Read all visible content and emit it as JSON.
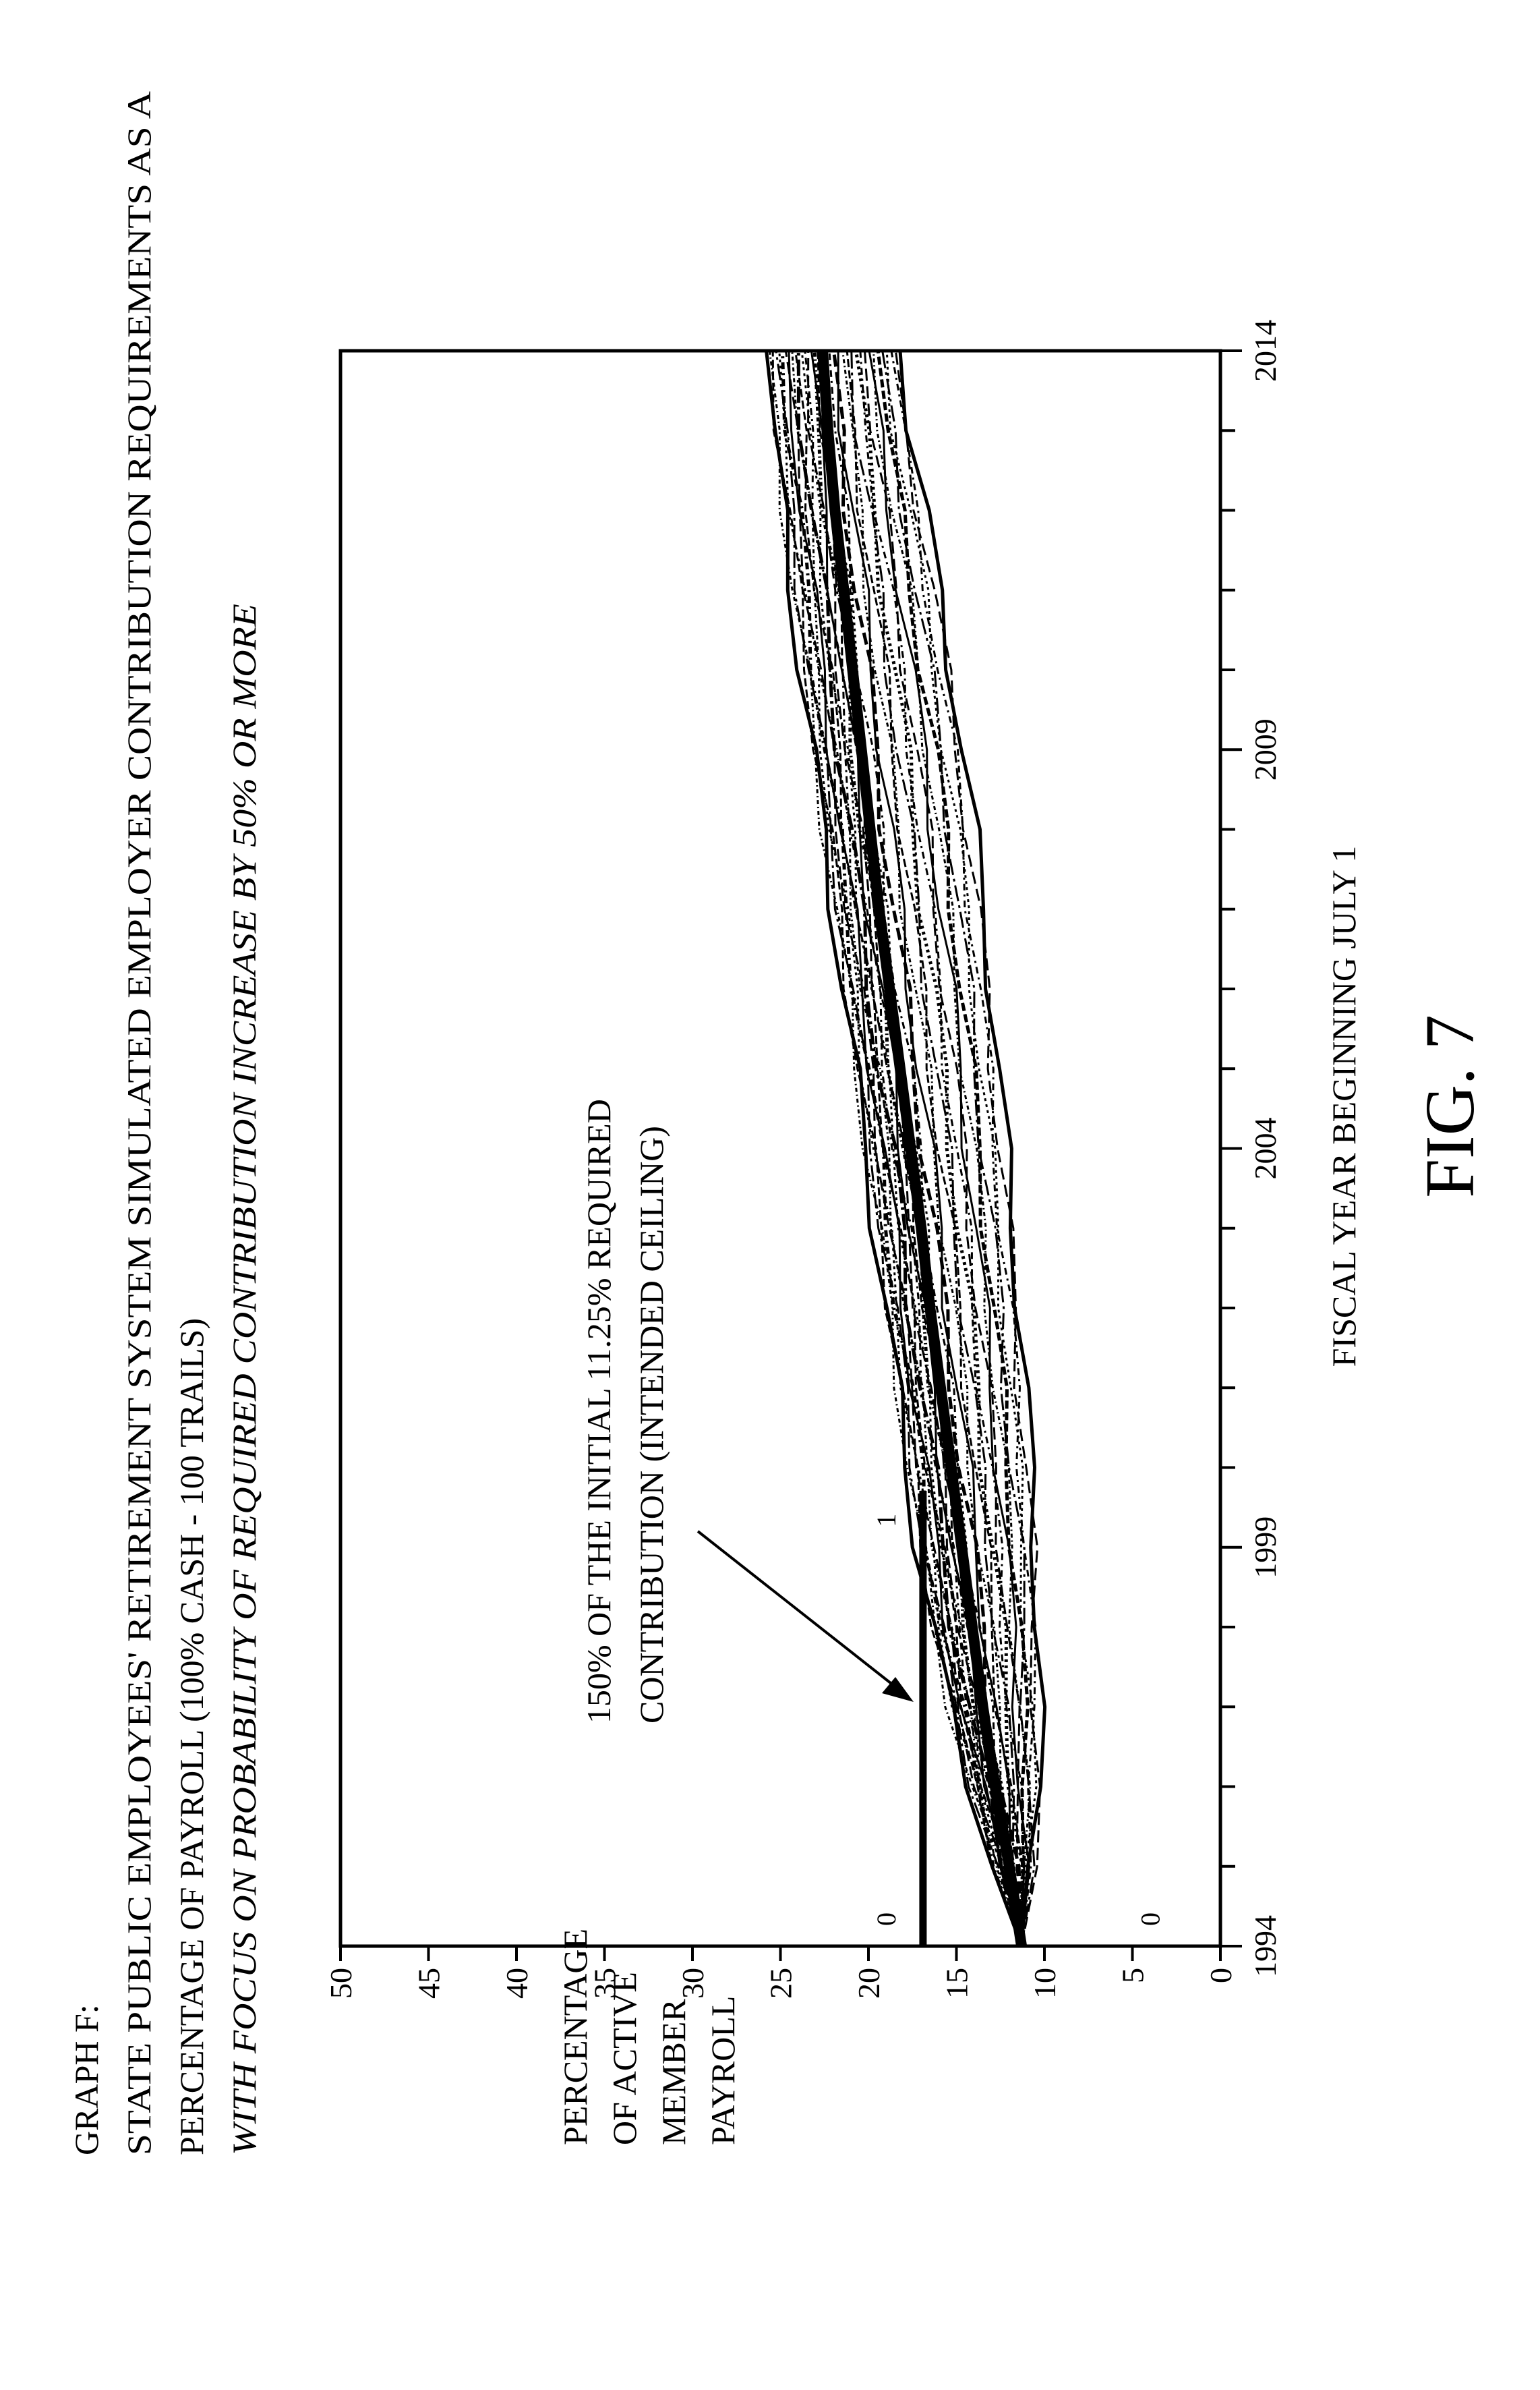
{
  "header": {
    "label": "GRAPH F:",
    "title_line1": "STATE PUBLIC EMPLOYEES' RETIREMENT SYSTEM SIMULATED EMPLOYER CONTRIBUTION REQUIREMENTS AS A",
    "title_line2": "PERCENTAGE OF PAYROLL (100% CASH - 100 TRAILS)",
    "subtitle": "WITH FOCUS ON PROBABILITY OF REQUIRED CONTRIBUTION INCREASE BY 50% OR MORE"
  },
  "figure_label": "FIG. 7",
  "chart_data": {
    "type": "line",
    "orientation": "rotated 90 degrees counter-clockwise",
    "ylabel_lines": [
      "PERCENTAGE",
      "OF ACTIVE",
      "MEMBER",
      "PAYROLL"
    ],
    "xlabel": "FISCAL YEAR BEGINNING JULY 1",
    "xlim": [
      1994,
      2014
    ],
    "ylim": [
      0,
      50
    ],
    "x_ticks": [
      1994,
      1999,
      2004,
      2009,
      2014
    ],
    "y_ticks": [
      0,
      5,
      10,
      15,
      20,
      25,
      30,
      35,
      40,
      45,
      50
    ],
    "grid": false,
    "trial_count_note": "100 TRAILS",
    "series_bundle": {
      "years": [
        1994,
        1995,
        1996,
        1997,
        1998,
        1999,
        2000,
        2001,
        2002,
        2003,
        2004,
        2005,
        2006,
        2007,
        2008,
        2009,
        2010,
        2011,
        2012,
        2013,
        2014
      ],
      "upper": [
        11.3,
        12.8,
        14.2,
        15.4,
        16.4,
        17.2,
        17.8,
        18.4,
        19.0,
        19.6,
        20.2,
        20.8,
        21.4,
        22.0,
        22.6,
        23.2,
        23.8,
        24.4,
        24.9,
        25.4,
        25.8
      ],
      "median": [
        11.3,
        12.0,
        12.8,
        13.5,
        14.1,
        14.7,
        15.3,
        15.9,
        16.5,
        17.0,
        17.6,
        18.2,
        18.8,
        19.4,
        19.9,
        20.4,
        20.9,
        21.4,
        21.9,
        22.3,
        22.6
      ],
      "lower": [
        11.3,
        10.6,
        10.3,
        10.3,
        10.4,
        10.5,
        10.8,
        11.1,
        11.4,
        11.8,
        12.2,
        12.6,
        13.0,
        13.5,
        14.0,
        14.6,
        15.3,
        16.0,
        16.8,
        17.6,
        18.2
      ]
    },
    "ceiling_line": {
      "value": 16.9,
      "label_lines": [
        "150% OF THE INITIAL 11.25% REQUIRED",
        "CONTRIBUTION (INTENDED CEILING)"
      ]
    },
    "count_markers": [
      {
        "year": 1994,
        "y": 19,
        "text": "0"
      },
      {
        "year": 1994,
        "y": 4,
        "text": "0"
      },
      {
        "year": 1999,
        "y": 19,
        "text": "1"
      }
    ]
  }
}
